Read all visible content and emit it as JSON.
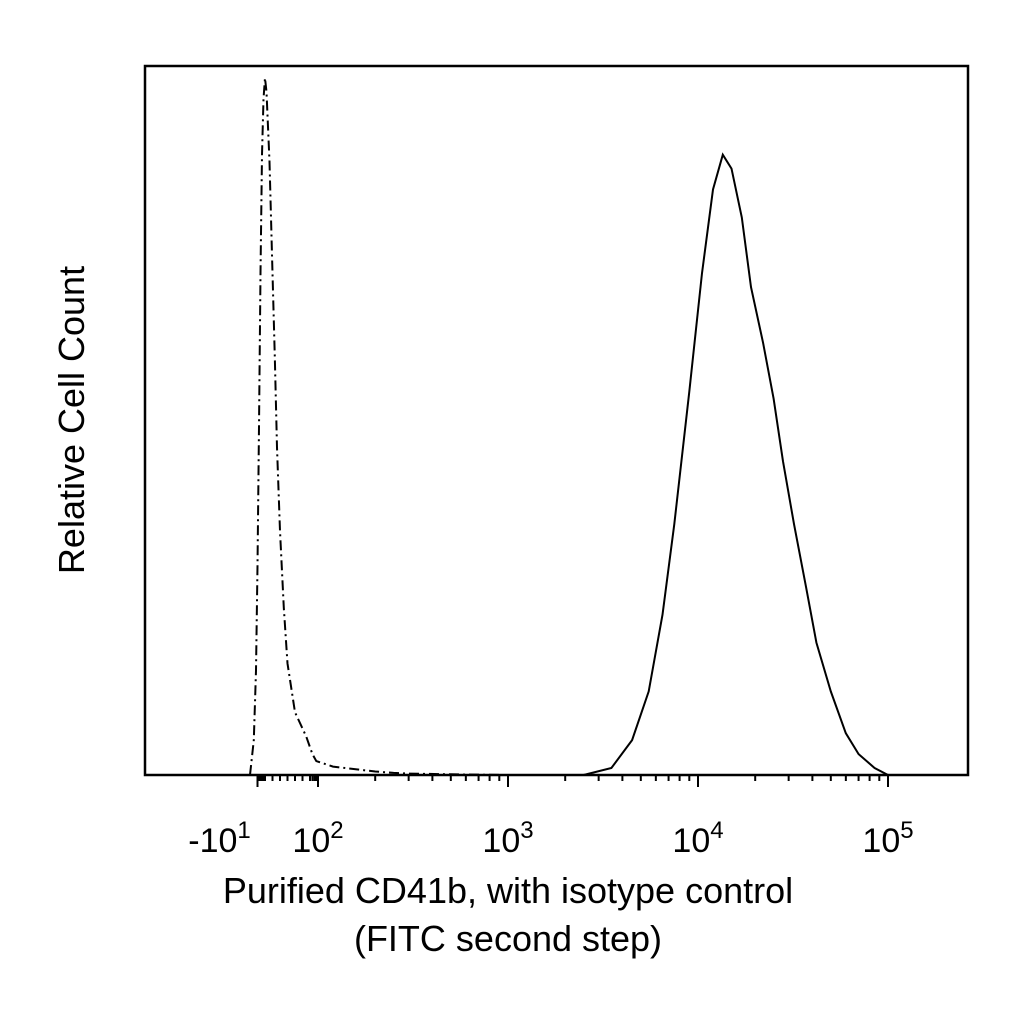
{
  "chart_data": {
    "type": "line",
    "title": "",
    "xlabel_line1": "Purified CD41b, with isotype control",
    "xlabel_line2": "(FITC second step)",
    "ylabel": "Relative Cell Count",
    "x_scale": "log (biexponential display)",
    "grid": false,
    "legend": "none",
    "ylim": [
      0,
      1
    ],
    "x_ticks": [
      {
        "value": -10,
        "base": "-10",
        "exp": "1"
      },
      {
        "value": 100,
        "base": "10",
        "exp": "2"
      },
      {
        "value": 1000,
        "base": "10",
        "exp": "3"
      },
      {
        "value": 10000,
        "base": "10",
        "exp": "4"
      },
      {
        "value": 100000,
        "base": "10",
        "exp": "5"
      }
    ],
    "series": [
      {
        "style": "dash-dot",
        "color": "#000000",
        "x": [
          -20,
          -15,
          -12,
          -10,
          -8,
          -6,
          -4,
          -2,
          0,
          2,
          4,
          6,
          8,
          10,
          13,
          16,
          20,
          25,
          30,
          40,
          55,
          70,
          90,
          120,
          160,
          200,
          250,
          300,
          500,
          1000
        ],
        "y": [
          0,
          0.05,
          0.15,
          0.3,
          0.5,
          0.72,
          0.89,
          0.97,
          1.0,
          0.98,
          0.93,
          0.88,
          0.8,
          0.72,
          0.6,
          0.47,
          0.35,
          0.24,
          0.16,
          0.09,
          0.055,
          0.03,
          0.02,
          0.012,
          0.008,
          0.005,
          0.003,
          0.002,
          0.001,
          0
        ]
      },
      {
        "style": "solid",
        "color": "#000000",
        "x": [
          2500,
          3500,
          4500,
          5500,
          6500,
          7500,
          9000,
          10500,
          12000,
          13500,
          15000,
          17000,
          19000,
          22000,
          25000,
          28000,
          32000,
          37000,
          42000,
          50000,
          60000,
          70000,
          85000,
          100000
        ],
        "y": [
          0,
          0.01,
          0.05,
          0.12,
          0.23,
          0.36,
          0.55,
          0.72,
          0.84,
          0.89,
          0.87,
          0.8,
          0.7,
          0.62,
          0.54,
          0.45,
          0.36,
          0.27,
          0.19,
          0.12,
          0.06,
          0.03,
          0.01,
          0
        ]
      }
    ]
  }
}
